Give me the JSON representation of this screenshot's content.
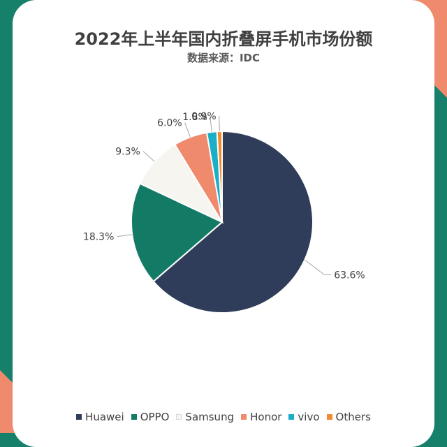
{
  "title": "2022年上半年国内折叠屏手机市场份额",
  "subtitle": "数据来源：IDC",
  "chart_data": {
    "type": "pie",
    "title": "2022年上半年国内折叠屏手机市场份额",
    "subtitle": "数据来源：IDC",
    "categories": [
      "Huawei",
      "OPPO",
      "Samsung",
      "Honor",
      "vivo",
      "Others"
    ],
    "values": [
      63.6,
      18.3,
      9.3,
      6.0,
      1.8,
      0.9
    ],
    "labels": [
      "63.6%",
      "18.3%",
      "9.3%",
      "6.0%",
      "1.8%",
      "0.9%"
    ],
    "colors": [
      "#2f3d5a",
      "#137b65",
      "#f7f5f0",
      "#f08a6c",
      "#1aaec7",
      "#f28b2c"
    ],
    "legend_position": "bottom"
  }
}
